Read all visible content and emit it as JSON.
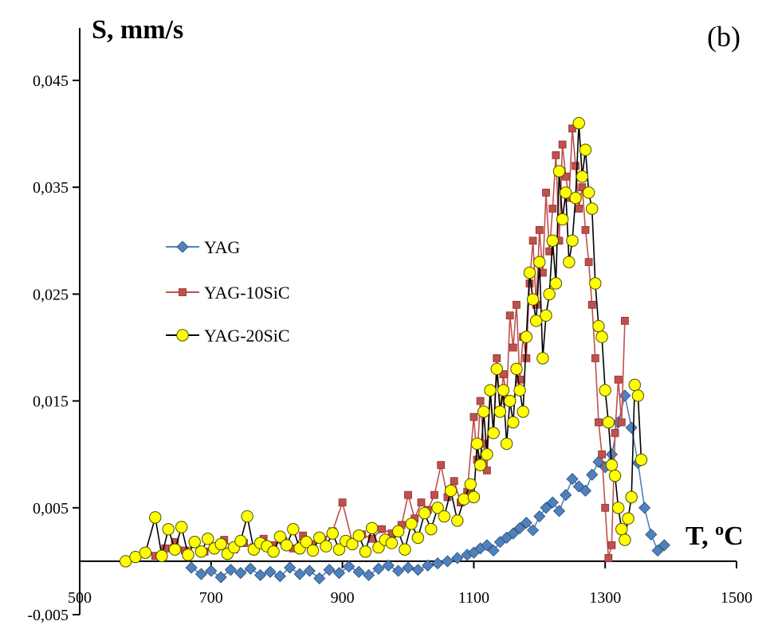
{
  "chart_data": {
    "type": "line",
    "panel_label": "(b)",
    "ylabel": "S, mm/s",
    "xlabel_main": "T, ",
    "xlabel_sup": "o",
    "xlabel_unit": "C",
    "xlim": [
      500,
      1500
    ],
    "ylim": [
      -0.005,
      0.045
    ],
    "x_ticks": [
      "500",
      "700",
      "900",
      "1100",
      "1300",
      "1500"
    ],
    "y_ticks": [
      "-0,005",
      "0,005",
      "0,015",
      "0,025",
      "0,035",
      "0,045"
    ],
    "grid": false,
    "legend_position": "center-left",
    "series": [
      {
        "name": "YAG",
        "color": "#4f81bd",
        "marker": "diamond",
        "x": [
          670,
          685,
          700,
          715,
          730,
          745,
          760,
          775,
          790,
          805,
          820,
          835,
          850,
          865,
          880,
          895,
          910,
          925,
          940,
          955,
          970,
          985,
          1000,
          1015,
          1030,
          1045,
          1060,
          1075,
          1090,
          1100,
          1110,
          1120,
          1130,
          1140,
          1150,
          1160,
          1170,
          1180,
          1190,
          1200,
          1210,
          1220,
          1230,
          1240,
          1250,
          1260,
          1270,
          1280,
          1290,
          1300,
          1310,
          1320,
          1330,
          1340,
          1350,
          1360,
          1370,
          1380,
          1390
        ],
        "y": [
          -0.0006,
          -0.0012,
          -0.0009,
          -0.0015,
          -0.0008,
          -0.0011,
          -0.0007,
          -0.0013,
          -0.001,
          -0.0014,
          -0.0006,
          -0.0012,
          -0.0009,
          -0.0016,
          -0.0008,
          -0.0011,
          -0.0005,
          -0.001,
          -0.0013,
          -0.0007,
          -0.0004,
          -0.0009,
          -0.0006,
          -0.0008,
          -0.0004,
          -0.0002,
          0.0,
          0.0003,
          0.0006,
          0.0008,
          0.0012,
          0.0015,
          0.001,
          0.0018,
          0.0022,
          0.0026,
          0.0031,
          0.0036,
          0.0029,
          0.0042,
          0.005,
          0.0055,
          0.0047,
          0.0062,
          0.0077,
          0.007,
          0.0066,
          0.0081,
          0.0093,
          0.0088,
          0.01,
          0.013,
          0.0155,
          0.0125,
          0.0092,
          0.005,
          0.0025,
          0.001,
          0.0015
        ]
      },
      {
        "name": "YAG-10SiC",
        "color": "#c0504d",
        "marker": "square",
        "x": [
          615,
          630,
          645,
          660,
          675,
          690,
          705,
          720,
          735,
          750,
          765,
          780,
          795,
          810,
          825,
          840,
          855,
          870,
          885,
          900,
          915,
          930,
          945,
          960,
          975,
          990,
          1000,
          1010,
          1020,
          1030,
          1040,
          1050,
          1060,
          1070,
          1080,
          1090,
          1100,
          1105,
          1110,
          1115,
          1120,
          1125,
          1130,
          1135,
          1140,
          1145,
          1150,
          1155,
          1160,
          1165,
          1170,
          1175,
          1180,
          1185,
          1190,
          1195,
          1200,
          1205,
          1210,
          1215,
          1220,
          1225,
          1230,
          1235,
          1240,
          1245,
          1250,
          1255,
          1260,
          1265,
          1270,
          1275,
          1280,
          1285,
          1290,
          1295,
          1300,
          1305,
          1310,
          1315,
          1320,
          1325,
          1330
        ],
        "y": [
          0.0005,
          0.0012,
          0.0018,
          0.001,
          0.0016,
          0.0009,
          0.0014,
          0.002,
          0.0011,
          0.0017,
          0.0013,
          0.0021,
          0.0015,
          0.0019,
          0.0012,
          0.0024,
          0.0016,
          0.002,
          0.0028,
          0.0055,
          0.0018,
          0.0025,
          0.0021,
          0.003,
          0.0026,
          0.0034,
          0.0062,
          0.004,
          0.0055,
          0.0048,
          0.0062,
          0.009,
          0.006,
          0.0075,
          0.0055,
          0.0065,
          0.0135,
          0.0095,
          0.015,
          0.011,
          0.0085,
          0.016,
          0.012,
          0.019,
          0.014,
          0.0175,
          0.015,
          0.023,
          0.02,
          0.024,
          0.017,
          0.021,
          0.019,
          0.026,
          0.03,
          0.024,
          0.031,
          0.027,
          0.0345,
          0.029,
          0.033,
          0.038,
          0.03,
          0.039,
          0.036,
          0.034,
          0.0405,
          0.037,
          0.033,
          0.035,
          0.031,
          0.028,
          0.024,
          0.019,
          0.013,
          0.01,
          0.005,
          0.0003,
          0.0015,
          0.012,
          0.017,
          0.013,
          0.0225
        ]
      },
      {
        "name": "YAG-20SiC",
        "color": "#000000",
        "marker_fill": "#ffff00",
        "marker_stroke": "#4d4d00",
        "marker": "circle",
        "x": [
          570,
          585,
          600,
          615,
          625,
          635,
          645,
          655,
          665,
          675,
          685,
          695,
          705,
          715,
          725,
          735,
          745,
          755,
          765,
          775,
          785,
          795,
          805,
          815,
          825,
          835,
          845,
          855,
          865,
          875,
          885,
          895,
          905,
          915,
          925,
          935,
          945,
          955,
          965,
          975,
          985,
          995,
          1005,
          1015,
          1025,
          1035,
          1045,
          1055,
          1065,
          1075,
          1085,
          1095,
          1100,
          1105,
          1110,
          1115,
          1120,
          1125,
          1130,
          1135,
          1140,
          1145,
          1150,
          1155,
          1160,
          1165,
          1170,
          1175,
          1180,
          1185,
          1190,
          1195,
          1200,
          1205,
          1210,
          1215,
          1220,
          1225,
          1230,
          1235,
          1240,
          1245,
          1250,
          1255,
          1260,
          1265,
          1270,
          1275,
          1280,
          1285,
          1290,
          1295,
          1300,
          1305,
          1310,
          1315,
          1320,
          1325,
          1330,
          1335,
          1340,
          1345,
          1350,
          1355
        ],
        "y": [
          0.0,
          0.0004,
          0.0008,
          0.0041,
          0.0005,
          0.003,
          0.0011,
          0.0032,
          0.0006,
          0.0018,
          0.0009,
          0.0021,
          0.0012,
          0.0016,
          0.0007,
          0.0013,
          0.0019,
          0.0042,
          0.0011,
          0.0017,
          0.0014,
          0.0009,
          0.0023,
          0.0015,
          0.003,
          0.0012,
          0.0018,
          0.001,
          0.0022,
          0.0014,
          0.0026,
          0.0011,
          0.0019,
          0.0016,
          0.0024,
          0.0009,
          0.0031,
          0.0013,
          0.002,
          0.0017,
          0.0028,
          0.0011,
          0.0035,
          0.0022,
          0.0045,
          0.003,
          0.005,
          0.0042,
          0.0066,
          0.0038,
          0.0058,
          0.0072,
          0.006,
          0.011,
          0.009,
          0.014,
          0.01,
          0.016,
          0.012,
          0.018,
          0.014,
          0.016,
          0.011,
          0.015,
          0.013,
          0.018,
          0.016,
          0.014,
          0.021,
          0.027,
          0.0245,
          0.0225,
          0.028,
          0.019,
          0.023,
          0.025,
          0.03,
          0.026,
          0.0365,
          0.032,
          0.0345,
          0.028,
          0.03,
          0.034,
          0.041,
          0.036,
          0.0385,
          0.0345,
          0.033,
          0.026,
          0.022,
          0.021,
          0.016,
          0.013,
          0.009,
          0.008,
          0.005,
          0.003,
          0.002,
          0.004,
          0.006,
          0.0165,
          0.0155,
          0.0095
        ]
      }
    ]
  }
}
